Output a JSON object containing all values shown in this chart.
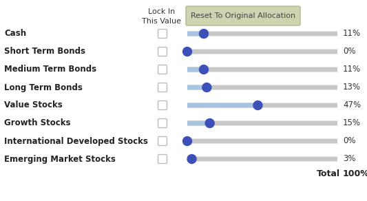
{
  "categories": [
    "Cash",
    "Short Term Bonds",
    "Medium Term Bonds",
    "Long Term Bonds",
    "Value Stocks",
    "Growth Stocks",
    "International Developed Stocks",
    "Emerging Market Stocks"
  ],
  "values": [
    11,
    0,
    11,
    13,
    47,
    15,
    0,
    3
  ],
  "total": "100%",
  "lock_in_label": "Lock In\nThis Value",
  "reset_button_label": "Reset To Original Allocation",
  "slider_max": 100,
  "bg_color": "#ffffff",
  "slider_track_color": "#c8c8c8",
  "slider_fill_color": "#a8c4e0",
  "knob_color": "#3d50b8",
  "label_color": "#222222",
  "button_bg": "#cdd4b0",
  "button_border": "#b0b890",
  "label_fontsize": 8.5,
  "value_fontsize": 8.5,
  "header_fontsize": 8.0,
  "button_fontsize": 8.0,
  "total_fontsize": 9.0
}
